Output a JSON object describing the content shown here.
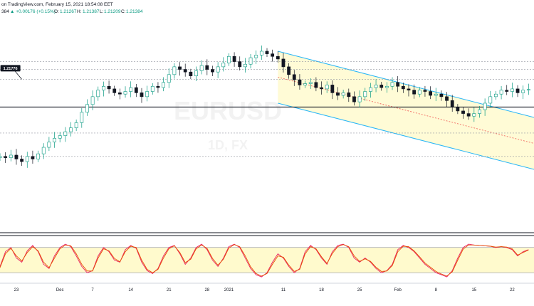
{
  "header": {
    "published_line": "on TradingView.com, February 15, 2021 18:54:08 EET",
    "last_fragment": "384",
    "change": "▲ +0.00176 (+0.15%)",
    "o_label": "O:",
    "o_value": "1.21267",
    "h_label": "H:",
    "h_value": "1.21387",
    "l_label": "L:",
    "l_value": "1.21209",
    "c_label": "C:",
    "c_value": "1.21384"
  },
  "watermark": {
    "symbol": "EURUSD",
    "subtitle": "1D, FX"
  },
  "chart_data": [
    {
      "type": "candlestick",
      "title": "",
      "x_ticks": [
        "23",
        "Dec",
        "7",
        "14",
        "21",
        "28",
        "2021",
        "11",
        "18",
        "25",
        "Feb",
        "8",
        "15",
        "22"
      ],
      "x_tick_days": [
        0,
        8,
        14,
        21,
        28,
        35,
        39,
        49,
        56,
        63,
        70,
        77,
        84,
        91
      ],
      "x_range_days": [
        -3,
        95
      ],
      "y_range": [
        1.16,
        1.24
      ],
      "grid": false,
      "close_series_start_day": -3,
      "close_series": [
        1.188,
        1.1875,
        1.1885,
        1.187,
        1.186,
        1.188,
        1.187,
        1.189,
        1.1915,
        1.1935,
        1.195,
        1.196,
        1.1975,
        1.199,
        1.201,
        1.205,
        1.208,
        1.211,
        1.2135,
        1.215,
        1.214,
        1.2125,
        1.212,
        1.213,
        1.2145,
        1.2125,
        1.211,
        1.213,
        1.215,
        1.2145,
        1.2165,
        1.2195,
        1.2225,
        1.2215,
        1.2205,
        1.219,
        1.221,
        1.223,
        1.2215,
        1.2205,
        1.2225,
        1.224,
        1.2265,
        1.2245,
        1.2225,
        1.2235,
        1.226,
        1.227,
        1.2285,
        1.2275,
        1.2265,
        1.2255,
        1.2225,
        1.2195,
        1.2175,
        1.2155,
        1.216,
        1.2165,
        1.2145,
        1.214,
        1.2155,
        1.2125,
        1.2115,
        1.2125,
        1.211,
        1.209,
        1.211,
        1.213,
        1.2145,
        1.2155,
        1.2145,
        1.215,
        1.2165,
        1.215,
        1.214,
        1.2135,
        1.212,
        1.2135,
        1.213,
        1.2115,
        1.212,
        1.211,
        1.2095,
        1.207,
        1.2055,
        1.2045,
        1.2035,
        1.2045,
        1.206,
        1.2085,
        1.211,
        1.212,
        1.2135,
        1.213,
        1.214,
        1.2125,
        1.2135,
        1.2138
      ],
      "horizontal_levels": [
        {
          "value": 1.207,
          "style": "solid"
        },
        {
          "value": 1.2177,
          "style": "dotted"
        },
        {
          "value": 1.2245,
          "style": "dotted"
        },
        {
          "value": 1.2215,
          "style": "dotted"
        },
        {
          "value": 1.197,
          "style": "dotted"
        },
        {
          "value": 1.188,
          "style": "dotted"
        }
      ],
      "price_annotation": {
        "label": "1.21776",
        "day": 1,
        "value": 1.2177
      },
      "regression_channel": {
        "start_day": 48,
        "end_day": 95,
        "upper_start": 1.2285,
        "upper_end": 1.203,
        "mid_start": 1.2185,
        "mid_end": 1.193,
        "lower_start": 1.2085,
        "lower_end": 1.183
      },
      "colors": {
        "up": "#089981",
        "down": "#131722",
        "channel": "#29b6f6",
        "channel_fill": "#fff9c4",
        "mid_line": "#ef5350"
      }
    },
    {
      "type": "line",
      "title": "",
      "y_range": [
        0,
        100
      ],
      "band": [
        20,
        80
      ],
      "series": [
        {
          "values": [
            35,
            70,
            80,
            55,
            45,
            72,
            85,
            70,
            40,
            30,
            60,
            80,
            88,
            82,
            60,
            35,
            20,
            25,
            60,
            80,
            70,
            50,
            45,
            75,
            85,
            78,
            45,
            25,
            18,
            30,
            60,
            80,
            85,
            65,
            40,
            55,
            80,
            88,
            75,
            50,
            35,
            55,
            82,
            88,
            80,
            55,
            30,
            15,
            10,
            20,
            45,
            65,
            55,
            35,
            20,
            30,
            70,
            85,
            75,
            55,
            40,
            70,
            85,
            88,
            80,
            55,
            45,
            55,
            45,
            30,
            20,
            25,
            40,
            75,
            85,
            80,
            70,
            55,
            40,
            30,
            20,
            15,
            10,
            25,
            55,
            80,
            88,
            86,
            85,
            84,
            83,
            80,
            82,
            80,
            75,
            60,
            70,
            75
          ]
        },
        {
          "values": [
            32,
            65,
            78,
            60,
            48,
            68,
            82,
            72,
            45,
            32,
            55,
            77,
            86,
            84,
            65,
            40,
            24,
            24,
            55,
            77,
            72,
            54,
            46,
            70,
            83,
            80,
            50,
            28,
            20,
            28,
            55,
            77,
            84,
            68,
            44,
            52,
            77,
            86,
            78,
            54,
            38,
            52,
            79,
            87,
            82,
            60,
            34,
            18,
            12,
            18,
            40,
            60,
            57,
            38,
            23,
            28,
            65,
            82,
            77,
            58,
            42,
            66,
            82,
            87,
            82,
            60,
            47,
            53,
            47,
            33,
            23,
            24,
            37,
            70,
            83,
            82,
            72,
            58,
            43,
            33,
            23,
            17,
            12,
            22,
            50,
            76,
            86,
            86,
            85,
            84,
            83,
            81,
            82,
            81,
            77,
            62,
            68,
            74
          ]
        }
      ],
      "colors": {
        "line_a": "#e91e63",
        "line_b": "#e65100",
        "band_fill": "#fff9c4",
        "band_line": "#787b86"
      }
    }
  ]
}
